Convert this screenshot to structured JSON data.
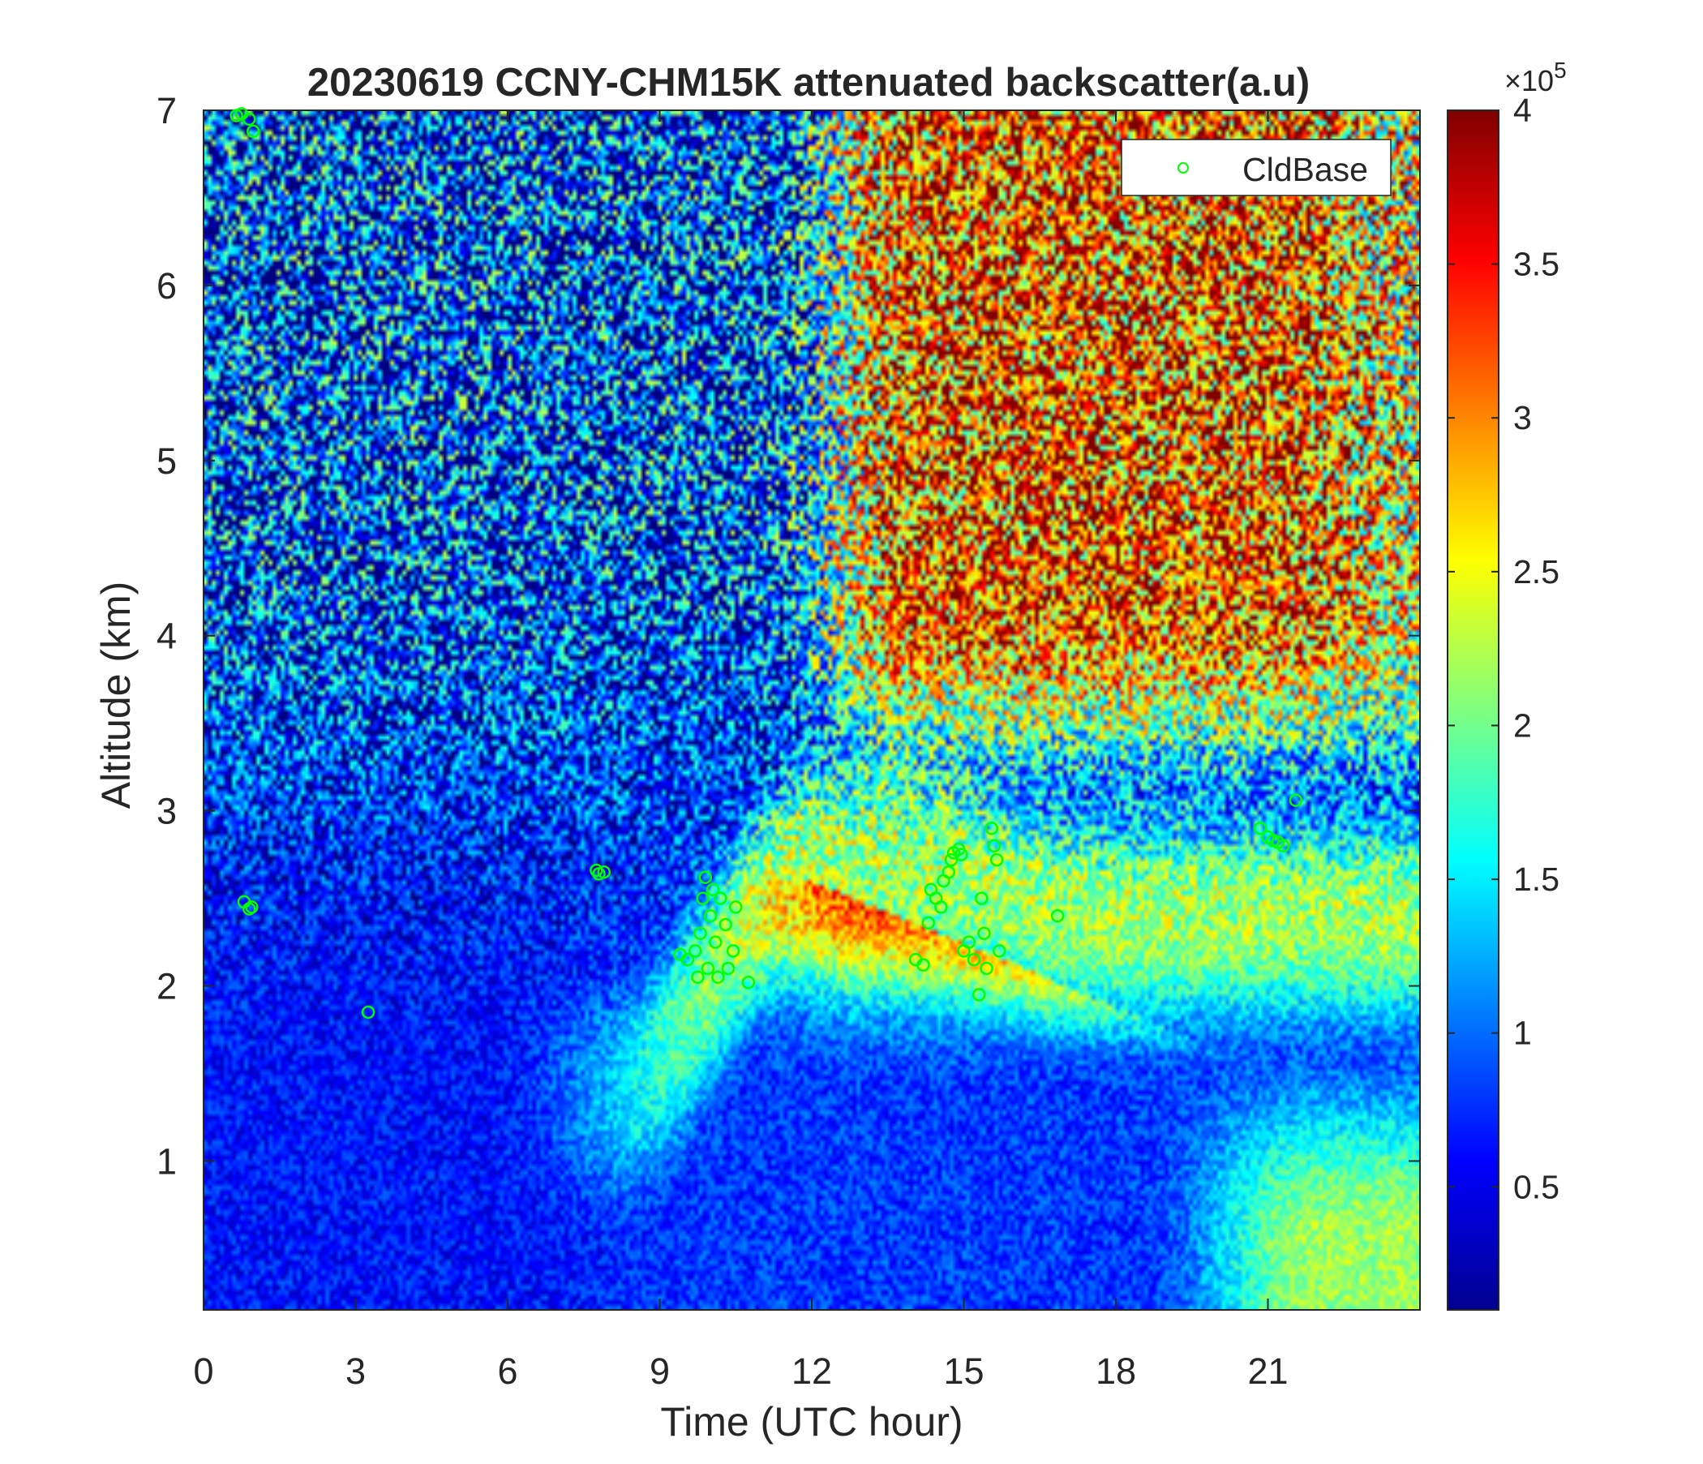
{
  "chart_data": {
    "type": "heatmap",
    "title": "20230619 CCNY-CHM15K attenuated backscatter(a.u)",
    "xlabel": "Time (UTC hour)",
    "ylabel": "Altitude (km)",
    "xlim": [
      0,
      24
    ],
    "ylim": [
      0.15,
      7
    ],
    "x_ticks": [
      0,
      3,
      6,
      9,
      12,
      15,
      18,
      21
    ],
    "y_ticks": [
      1,
      2,
      3,
      4,
      5,
      6,
      7
    ],
    "colorbar": {
      "range": [
        0.1,
        4
      ],
      "ticks": [
        0.5,
        1,
        1.5,
        2,
        2.5,
        3,
        3.5,
        4
      ],
      "tick_labels": [
        "0.5",
        "1",
        "1.5",
        "2",
        "2.5",
        "3",
        "3.5",
        "4"
      ],
      "multiplier_base": "×10",
      "multiplier_exponent": "5",
      "colormap": "jet"
    },
    "legend": {
      "position": "top-right",
      "entries": [
        "CldBase"
      ]
    },
    "cloud_base_color": "#00ff00",
    "cloud_base_points": [
      {
        "x": 0.65,
        "y": 6.97
      },
      {
        "x": 0.75,
        "y": 6.98
      },
      {
        "x": 0.9,
        "y": 6.95
      },
      {
        "x": 0.98,
        "y": 6.88
      },
      {
        "x": 0.8,
        "y": 2.48
      },
      {
        "x": 0.9,
        "y": 2.44
      },
      {
        "x": 0.95,
        "y": 2.45
      },
      {
        "x": 3.25,
        "y": 1.85
      },
      {
        "x": 7.75,
        "y": 2.66
      },
      {
        "x": 7.8,
        "y": 2.64
      },
      {
        "x": 7.9,
        "y": 2.65
      },
      {
        "x": 9.4,
        "y": 2.18
      },
      {
        "x": 9.55,
        "y": 2.15
      },
      {
        "x": 9.7,
        "y": 2.2
      },
      {
        "x": 9.75,
        "y": 2.05
      },
      {
        "x": 9.8,
        "y": 2.3
      },
      {
        "x": 9.85,
        "y": 2.5
      },
      {
        "x": 9.9,
        "y": 2.62
      },
      {
        "x": 9.95,
        "y": 2.1
      },
      {
        "x": 10.0,
        "y": 2.4
      },
      {
        "x": 10.05,
        "y": 2.55
      },
      {
        "x": 10.1,
        "y": 2.25
      },
      {
        "x": 10.15,
        "y": 2.05
      },
      {
        "x": 10.2,
        "y": 2.5
      },
      {
        "x": 10.3,
        "y": 2.35
      },
      {
        "x": 10.35,
        "y": 2.1
      },
      {
        "x": 10.45,
        "y": 2.2
      },
      {
        "x": 10.5,
        "y": 2.45
      },
      {
        "x": 10.75,
        "y": 2.02
      },
      {
        "x": 14.05,
        "y": 2.15
      },
      {
        "x": 14.2,
        "y": 2.12
      },
      {
        "x": 14.3,
        "y": 2.36
      },
      {
        "x": 14.35,
        "y": 2.55
      },
      {
        "x": 14.45,
        "y": 2.5
      },
      {
        "x": 14.55,
        "y": 2.45
      },
      {
        "x": 14.6,
        "y": 2.6
      },
      {
        "x": 14.7,
        "y": 2.65
      },
      {
        "x": 14.75,
        "y": 2.72
      },
      {
        "x": 14.8,
        "y": 2.76
      },
      {
        "x": 14.9,
        "y": 2.78
      },
      {
        "x": 14.95,
        "y": 2.75
      },
      {
        "x": 15.0,
        "y": 2.2
      },
      {
        "x": 15.1,
        "y": 2.25
      },
      {
        "x": 15.2,
        "y": 2.15
      },
      {
        "x": 15.3,
        "y": 1.95
      },
      {
        "x": 15.35,
        "y": 2.5
      },
      {
        "x": 15.4,
        "y": 2.3
      },
      {
        "x": 15.45,
        "y": 2.1
      },
      {
        "x": 15.55,
        "y": 2.9
      },
      {
        "x": 15.6,
        "y": 2.8
      },
      {
        "x": 15.65,
        "y": 2.72
      },
      {
        "x": 15.7,
        "y": 2.2
      },
      {
        "x": 16.85,
        "y": 2.4
      },
      {
        "x": 20.85,
        "y": 2.9
      },
      {
        "x": 21.0,
        "y": 2.85
      },
      {
        "x": 21.1,
        "y": 2.83
      },
      {
        "x": 21.2,
        "y": 2.82
      },
      {
        "x": 21.3,
        "y": 2.8
      },
      {
        "x": 21.55,
        "y": 3.06
      }
    ]
  }
}
